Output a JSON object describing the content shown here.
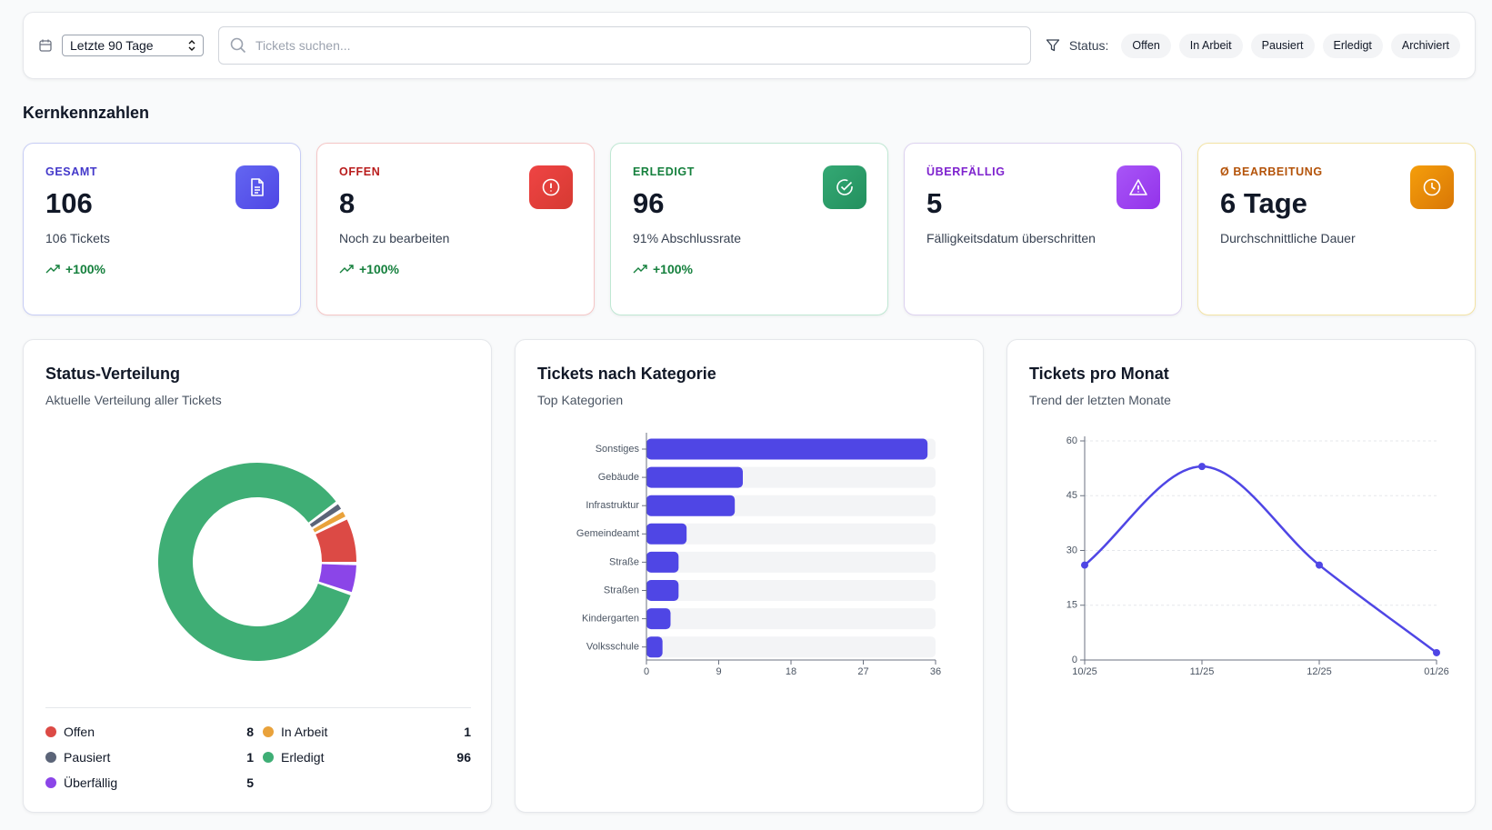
{
  "toolbar": {
    "date_range": "Letzte 90 Tage",
    "search_placeholder": "Tickets suchen...",
    "status_label": "Status:",
    "status_filters": [
      "Offen",
      "In Arbeit",
      "Pausiert",
      "Erledigt",
      "Archiviert"
    ]
  },
  "section_title": "Kernkennzahlen",
  "kpis": [
    {
      "label": "GESAMT",
      "value": "106",
      "subtitle": "106 Tickets",
      "trend": "+100%"
    },
    {
      "label": "OFFEN",
      "value": "8",
      "subtitle": "Noch zu bearbeiten",
      "trend": "+100%"
    },
    {
      "label": "ERLEDIGT",
      "value": "96",
      "subtitle": "91% Abschlussrate",
      "trend": "+100%"
    },
    {
      "label": "ÜBERFÄLLIG",
      "value": "5",
      "subtitle": "Fälligkeitsdatum überschritten"
    },
    {
      "label": "Ø BEARBEITUNG",
      "value": "6 Tage",
      "subtitle": "Durchschnittliche Dauer"
    }
  ],
  "chart_data": [
    {
      "type": "pie",
      "donut": true,
      "title": "Status-Verteilung",
      "subtitle": "Aktuelle Verteilung aller Tickets",
      "categories": [
        "Offen",
        "In Arbeit",
        "Pausiert",
        "Erledigt",
        "Überfällig"
      ],
      "values": [
        8,
        1,
        1,
        96,
        5
      ],
      "colors": [
        "#dc4a45",
        "#e9a23b",
        "#5b6478",
        "#3fae75",
        "#8b45e8"
      ]
    },
    {
      "type": "bar",
      "orientation": "horizontal",
      "title": "Tickets nach Kategorie",
      "subtitle": "Top Kategorien",
      "categories": [
        "Sonstiges",
        "Gebäude",
        "Infrastruktur",
        "Gemeindeamt",
        "Straße",
        "Straßen",
        "Kindergarten",
        "Volksschule"
      ],
      "values": [
        35,
        12,
        11,
        5,
        4,
        4,
        3,
        2
      ],
      "color": "#4f46e5",
      "xlim": [
        0,
        36
      ],
      "xticks": [
        0,
        9,
        18,
        27,
        36
      ]
    },
    {
      "type": "line",
      "title": "Tickets pro Monat",
      "subtitle": "Trend der letzten Monate",
      "categories": [
        "10/25",
        "11/25",
        "12/25",
        "01/26"
      ],
      "values": [
        26,
        53,
        26,
        2
      ],
      "color": "#4f46e5",
      "ylim": [
        0,
        60
      ],
      "yticks": [
        0,
        15,
        30,
        45,
        60
      ],
      "grid": true
    }
  ]
}
